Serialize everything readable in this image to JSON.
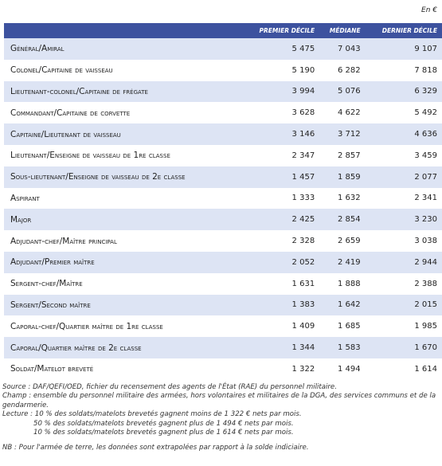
{
  "unit": "En €",
  "table": {
    "header": [
      "Premier décile",
      "Médiane",
      "Dernier décile"
    ],
    "rows": [
      [
        "Général/Amiral",
        "5 475",
        "7 043",
        "9 107"
      ],
      [
        "Colonel/Capitaine de vaisseau",
        "5 190",
        "6 282",
        "7 818"
      ],
      [
        "Lieutenant-colonel/Capitaine de frégate",
        "3 994",
        "5 076",
        "6 329"
      ],
      [
        "Commandant/Capitaine de corvette",
        "3 628",
        "4 622",
        "5 492"
      ],
      [
        "Capitaine/Lieutenant de vaisseau",
        "3 146",
        "3 712",
        "4 636"
      ],
      [
        "Lieutenant/Enseigne de vaisseau de 1re classe",
        "2 347",
        "2 857",
        "3 459"
      ],
      [
        "Sous-lieutenant/Enseigne de vaisseau de 2e classe",
        "1 457",
        "1 859",
        "2 077"
      ],
      [
        "Aspirant",
        "1 333",
        "1 632",
        "2 341"
      ],
      [
        "Major",
        "2 425",
        "2 854",
        "3 230"
      ],
      [
        "Adjudant-chef/Maître principal",
        "2 328",
        "2 659",
        "3 038"
      ],
      [
        "Adjudant/Premier maître",
        "2 052",
        "2 419",
        "2 944"
      ],
      [
        "Sergent-chef/Maître",
        "1 631",
        "1 888",
        "2 388"
      ],
      [
        "Sergent/Second maître",
        "1 383",
        "1 642",
        "2 015"
      ],
      [
        "Caporal-chef/Quartier maître de 1re classe",
        "1 409",
        "1 685",
        "1 985"
      ],
      [
        "Caporal/Quartier maître de 2e classe",
        "1 344",
        "1 583",
        "1 670"
      ],
      [
        "Soldat/Matelot breveté",
        "1 322",
        "1 494",
        "1 614"
      ]
    ]
  },
  "notes": {
    "source": "Source : DAF/QEFI/OED, fichier du recensement des agents de l'État (RAE) du personnel militaire.",
    "champ": "Champ : ensemble du personnel militaire des armées, hors volontaires et militaires de la DGA, des services communs et de la gendarmerie.",
    "lecture": [
      "Lecture : 10 % des soldats/matelots brevetés gagnent moins de 1 322 € nets par mois.",
      "50 % des soldats/matelots brevetés gagnent plus de 1 494 € nets par mois.",
      "10 % des soldats/matelots brevetés gagnent plus de 1 614 € nets par mois."
    ],
    "nb": "NB : Pour l'armée de terre, les données sont extrapolées par rapport à la solde indiciaire."
  }
}
